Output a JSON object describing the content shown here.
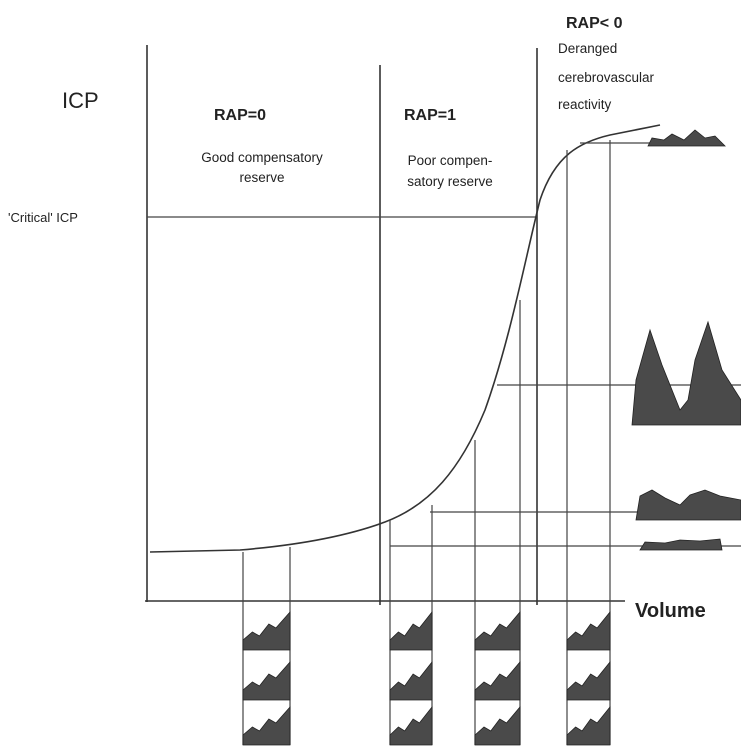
{
  "axes": {
    "y_label": "ICP",
    "x_label": "Volume",
    "critical_label": "'Critical' ICP"
  },
  "regions": [
    {
      "label": "RAP=0",
      "description": [
        "Good compensatory",
        "reserve"
      ]
    },
    {
      "label": "RAP=1",
      "description": [
        "Poor compen-",
        "satory reserve"
      ]
    },
    {
      "label": "RAP< 0",
      "description": [
        "Deranged",
        "cerebrovascular",
        "reactivity"
      ]
    }
  ]
}
